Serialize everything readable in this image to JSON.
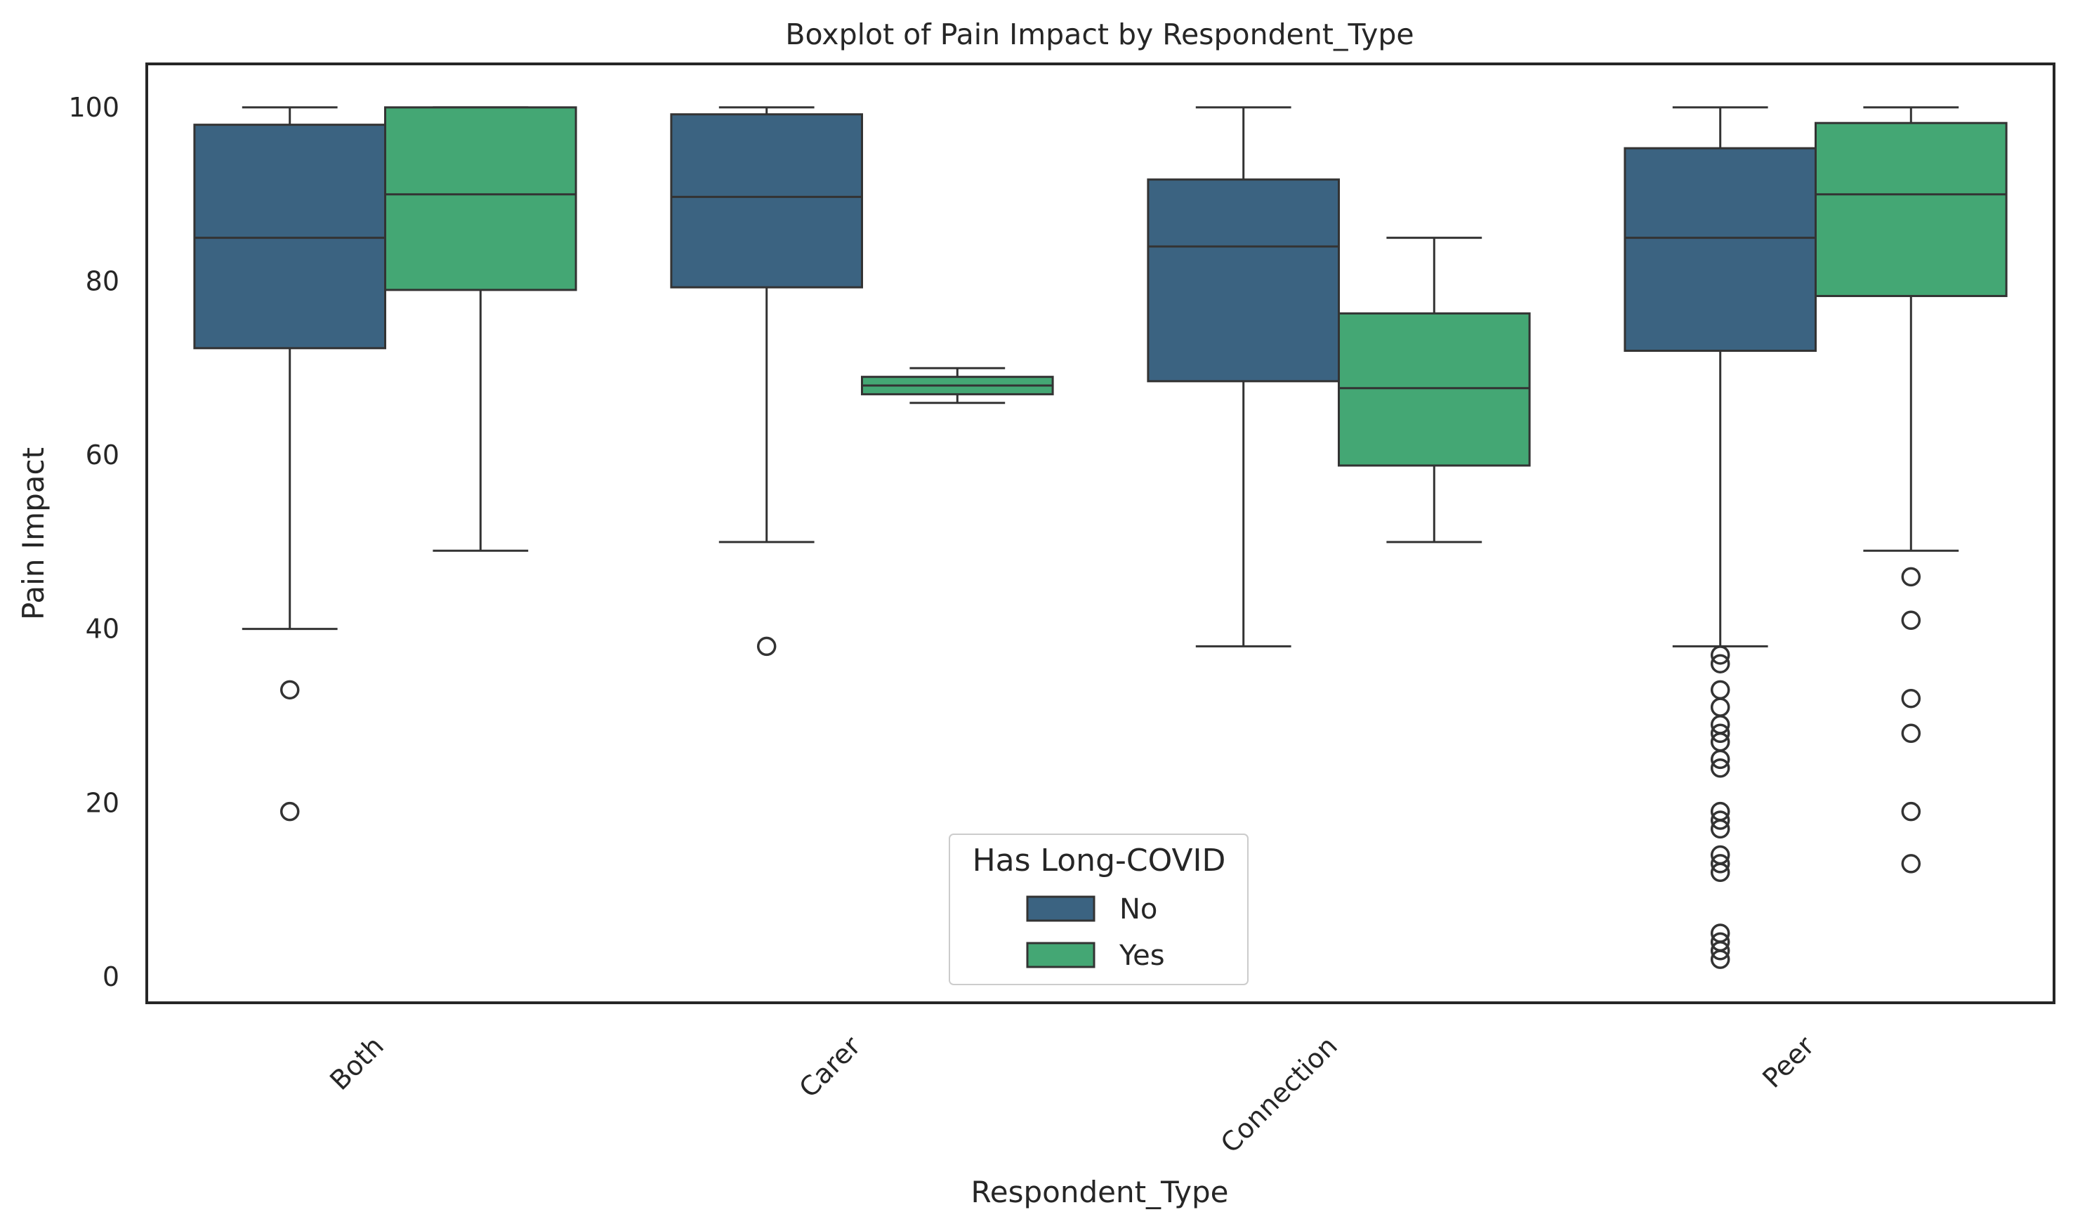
{
  "chart_data": {
    "type": "box",
    "title": "Boxplot of Pain Impact by Respondent_Type",
    "xlabel": "Respondent_Type",
    "ylabel": "Pain Impact",
    "ylim": [
      -3,
      105
    ],
    "yticks": [
      0,
      20,
      40,
      60,
      80,
      100
    ],
    "grid": false,
    "legend": {
      "title": "Has Long-COVID",
      "position": "lower-center",
      "entries": [
        "No",
        "Yes"
      ]
    },
    "colors": {
      "No": "#3b6381",
      "Yes": "#44a774"
    },
    "categories": [
      "Both",
      "Carer",
      "Connection",
      "Peer"
    ],
    "series": [
      {
        "name": "No",
        "boxes": [
          {
            "category": "Both",
            "whislo": 40,
            "q1": 72.3,
            "med": 85,
            "q3": 98,
            "whishi": 100,
            "fliers": [
              33,
              19
            ]
          },
          {
            "category": "Carer",
            "whislo": 50,
            "q1": 79.3,
            "med": 89.7,
            "q3": 99.2,
            "whishi": 100,
            "fliers": [
              38
            ]
          },
          {
            "category": "Connection",
            "whislo": 38,
            "q1": 68.5,
            "med": 84,
            "q3": 91.7,
            "whishi": 100,
            "fliers": []
          },
          {
            "category": "Peer",
            "whislo": 38,
            "q1": 72,
            "med": 85,
            "q3": 95.3,
            "whishi": 100,
            "fliers": [
              37,
              36,
              33,
              31,
              29,
              28,
              27,
              25,
              24,
              19,
              18,
              17,
              14,
              13,
              12,
              5,
              4,
              3,
              2
            ]
          }
        ]
      },
      {
        "name": "Yes",
        "boxes": [
          {
            "category": "Both",
            "whislo": 49,
            "q1": 79,
            "med": 90,
            "q3": 100,
            "whishi": 100,
            "fliers": []
          },
          {
            "category": "Carer",
            "whislo": 66,
            "q1": 67,
            "med": 68,
            "q3": 69,
            "whishi": 70,
            "fliers": []
          },
          {
            "category": "Connection",
            "whislo": 50,
            "q1": 58.8,
            "med": 67.7,
            "q3": 76.3,
            "whishi": 85,
            "fliers": []
          },
          {
            "category": "Peer",
            "whislo": 49,
            "q1": 78.3,
            "med": 90,
            "q3": 98.2,
            "whishi": 100,
            "fliers": [
              46,
              41,
              32,
              28,
              19,
              13
            ]
          }
        ]
      }
    ]
  }
}
